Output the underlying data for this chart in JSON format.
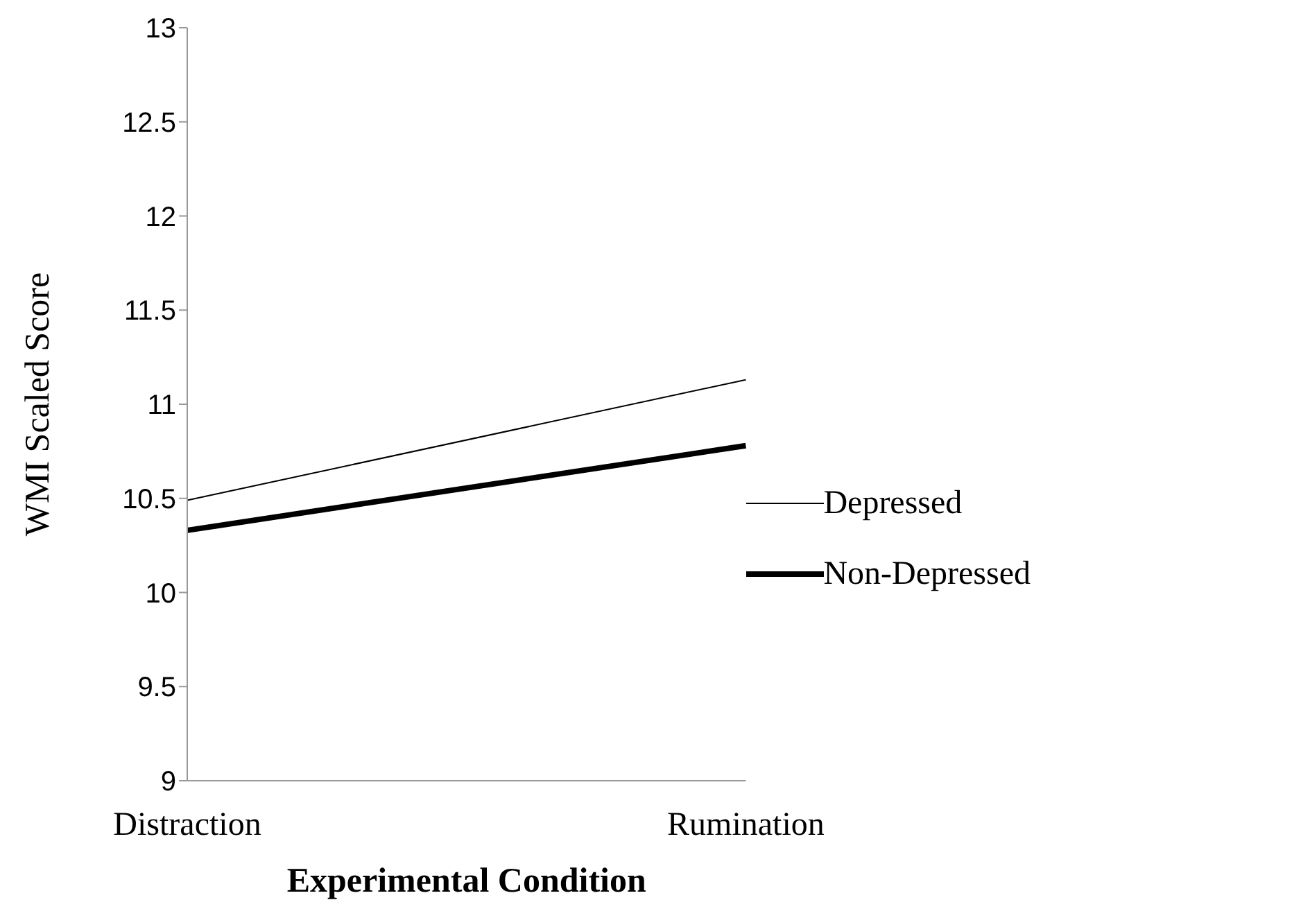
{
  "chart_data": {
    "type": "line",
    "xlabel": "Experimental Condition",
    "ylabel": "WMI Scaled Score",
    "categories": [
      "Distraction",
      "Rumination"
    ],
    "series": [
      {
        "name": "Depressed",
        "color": "#000000",
        "values": [
          10.49,
          11.13
        ]
      },
      {
        "name": "Non-Depressed",
        "color": "#000000",
        "values": [
          10.33,
          10.78
        ]
      }
    ],
    "ylim": [
      9,
      13
    ],
    "yticks": [
      9,
      9.5,
      10,
      10.5,
      11,
      11.5,
      12,
      12.5,
      13
    ],
    "grid": false,
    "legend": "right",
    "marker": "none"
  }
}
